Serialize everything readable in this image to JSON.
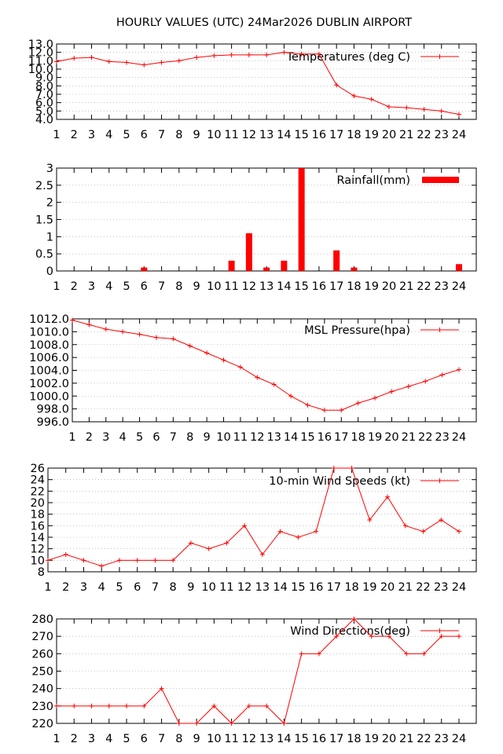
{
  "page_title": "HOURLY VALUES (UTC) 24Mar2026  DUBLIN AIRPORT",
  "colors": {
    "series": "#ff0000",
    "grid": "#a0a0a0",
    "axis": "#000000"
  },
  "chart_data": [
    {
      "id": "temperature",
      "type": "line",
      "legend": "Temperatures (deg C)",
      "legend_placement": "top-right",
      "x": [
        1,
        2,
        3,
        4,
        5,
        6,
        7,
        8,
        9,
        10,
        11,
        12,
        13,
        14,
        15,
        16,
        17,
        18,
        19,
        20,
        21,
        22,
        23,
        24
      ],
      "values": [
        10.9,
        11.3,
        11.4,
        10.9,
        10.8,
        10.5,
        10.8,
        11.0,
        11.4,
        11.6,
        11.7,
        11.7,
        11.7,
        12.0,
        11.8,
        11.8,
        8.1,
        6.8,
        6.4,
        5.5,
        5.4,
        5.2,
        5.0,
        4.6
      ],
      "ylim": [
        4.0,
        13.0
      ],
      "yticks": [
        "4.0",
        "5.0",
        "6.0",
        "7.0",
        "8.0",
        "9.0",
        "10.0",
        "11.0",
        "12.0",
        "13.0"
      ],
      "grid": true
    },
    {
      "id": "rainfall",
      "type": "bar",
      "legend": "Rainfall(mm)",
      "legend_placement": "top-right",
      "x": [
        1,
        2,
        3,
        4,
        5,
        6,
        7,
        8,
        9,
        10,
        11,
        12,
        13,
        14,
        15,
        16,
        17,
        18,
        19,
        20,
        21,
        22,
        23,
        24
      ],
      "values": [
        0,
        0,
        0,
        0,
        0,
        0.1,
        0,
        0,
        0,
        0,
        0.3,
        1.1,
        0.1,
        0.3,
        3.0,
        0,
        0.6,
        0.1,
        0,
        0,
        0,
        0,
        0,
        0.2
      ],
      "ylim": [
        0,
        3
      ],
      "yticks": [
        "0",
        "0.5",
        "1",
        "1.5",
        "2",
        "2.5",
        "3"
      ],
      "grid": true
    },
    {
      "id": "pressure",
      "type": "line",
      "legend": "MSL Pressure(hpa)",
      "legend_placement": "top-right",
      "x": [
        1,
        2,
        3,
        4,
        5,
        6,
        7,
        8,
        9,
        10,
        11,
        12,
        13,
        14,
        15,
        16,
        17,
        18,
        19,
        20,
        21,
        22,
        23,
        24
      ],
      "values": [
        1011.8,
        1011.1,
        1010.4,
        1010.0,
        1009.6,
        1009.1,
        1008.9,
        1007.8,
        1006.7,
        1005.6,
        1004.5,
        1002.9,
        1001.8,
        1000.0,
        998.6,
        997.8,
        997.8,
        998.9,
        999.7,
        1000.7,
        1001.5,
        1002.3,
        1003.3,
        1004.1
      ],
      "ylim": [
        996.0,
        1012.0
      ],
      "yticks": [
        "996.0",
        "998.0",
        "1000.0",
        "1002.0",
        "1004.0",
        "1006.0",
        "1008.0",
        "1010.0",
        "1012.0"
      ],
      "grid": true
    },
    {
      "id": "wind_speed",
      "type": "line",
      "legend": "10-min Wind Speeds (kt)",
      "legend_placement": "top-right",
      "x": [
        1,
        2,
        3,
        4,
        5,
        6,
        7,
        8,
        9,
        10,
        11,
        12,
        13,
        14,
        15,
        16,
        17,
        18,
        19,
        20,
        21,
        22,
        23,
        24
      ],
      "values": [
        10,
        11,
        10,
        9,
        10,
        10,
        10,
        10,
        13,
        12,
        13,
        16,
        11,
        15,
        14,
        15,
        26,
        26,
        17,
        21,
        16,
        15,
        17,
        15
      ],
      "ylim": [
        8,
        26
      ],
      "yticks": [
        "8",
        "10",
        "12",
        "14",
        "16",
        "18",
        "20",
        "22",
        "24",
        "26"
      ],
      "grid": true
    },
    {
      "id": "wind_direction",
      "type": "line",
      "legend": "Wind Directions(deg)",
      "legend_placement": "top-right",
      "x": [
        1,
        2,
        3,
        4,
        5,
        6,
        7,
        8,
        9,
        10,
        11,
        12,
        13,
        14,
        15,
        16,
        17,
        18,
        19,
        20,
        21,
        22,
        23,
        24
      ],
      "values": [
        230,
        230,
        230,
        230,
        230,
        230,
        240,
        220,
        220,
        230,
        220,
        230,
        230,
        220,
        260,
        260,
        270,
        280,
        270,
        270,
        260,
        260,
        270,
        270
      ],
      "ylim": [
        220,
        280
      ],
      "yticks": [
        "220",
        "230",
        "240",
        "250",
        "260",
        "270",
        "280"
      ],
      "grid": true
    }
  ]
}
